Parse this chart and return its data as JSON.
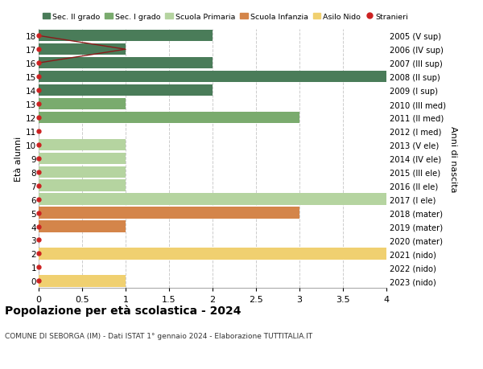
{
  "ages": [
    18,
    17,
    16,
    15,
    14,
    13,
    12,
    11,
    10,
    9,
    8,
    7,
    6,
    5,
    4,
    3,
    2,
    1,
    0
  ],
  "right_labels": [
    "2005 (V sup)",
    "2006 (IV sup)",
    "2007 (III sup)",
    "2008 (II sup)",
    "2009 (I sup)",
    "2010 (III med)",
    "2011 (II med)",
    "2012 (I med)",
    "2013 (V ele)",
    "2014 (IV ele)",
    "2015 (III ele)",
    "2016 (II ele)",
    "2017 (I ele)",
    "2018 (mater)",
    "2019 (mater)",
    "2020 (mater)",
    "2021 (nido)",
    "2022 (nido)",
    "2023 (nido)"
  ],
  "bar_values": [
    2,
    1,
    2,
    4,
    2,
    1,
    3,
    0,
    1,
    1,
    1,
    1,
    4,
    3,
    1,
    0,
    4,
    0,
    1
  ],
  "bar_colors": [
    "#4a7c59",
    "#4a7c59",
    "#4a7c59",
    "#4a7c59",
    "#4a7c59",
    "#7aab6e",
    "#7aab6e",
    "#7aab6e",
    "#b5d4a0",
    "#b5d4a0",
    "#b5d4a0",
    "#b5d4a0",
    "#b5d4a0",
    "#d4854a",
    "#d4854a",
    "#d4854a",
    "#f0d070",
    "#f0d070",
    "#f0d070"
  ],
  "legend_labels": [
    "Sec. II grado",
    "Sec. I grado",
    "Scuola Primaria",
    "Scuola Infanzia",
    "Asilo Nido",
    "Stranieri"
  ],
  "legend_colors": [
    "#4a7c59",
    "#7aab6e",
    "#b5d4a0",
    "#d4854a",
    "#f0d070",
    "#cc2222"
  ],
  "stranieri_color": "#cc2222",
  "stranieri_line_color": "#8b1a1a",
  "title": "Popolazione per età scolastica - 2024",
  "subtitle": "COMUNE DI SEBORGA (IM) - Dati ISTAT 1° gennaio 2024 - Elaborazione TUTTITALIA.IT",
  "ylabel_left": "Età alunni",
  "ylabel_right": "Anni di nascita",
  "xlim": [
    0,
    4.0
  ],
  "ylim": [
    -0.5,
    18.5
  ],
  "xticks": [
    0,
    0.5,
    1.0,
    1.5,
    2.0,
    2.5,
    3.0,
    3.5,
    4.0
  ],
  "xtick_labels": [
    "0",
    "0.5",
    "1",
    "1.5",
    "2",
    "2.5",
    "3",
    "3.5",
    "4"
  ],
  "bar_height": 0.85,
  "background_color": "#ffffff",
  "grid_color": "#cccccc"
}
